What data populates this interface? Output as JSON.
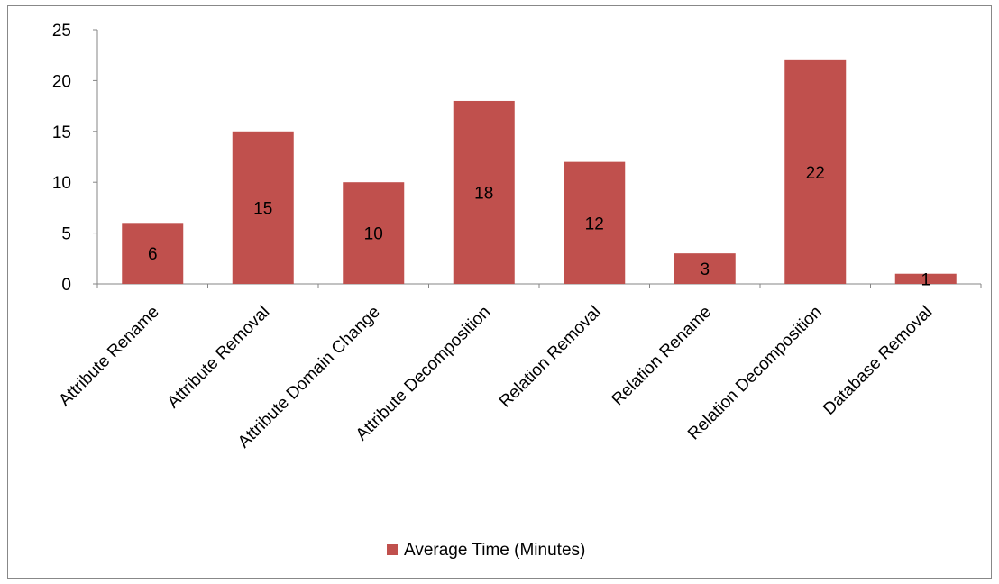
{
  "chart_data": {
    "type": "bar",
    "title": "",
    "xlabel": "",
    "ylabel": "",
    "categories": [
      "Attribute Rename",
      "Attribute Removal",
      "Attribute Domain Change",
      "Attribute Decomposition",
      "Relation Removal",
      "Relation Rename",
      "Relation Decomposition",
      "Database Removal"
    ],
    "series": [
      {
        "name": "Average Time (Minutes)",
        "values": [
          6,
          15,
          10,
          18,
          12,
          3,
          22,
          1
        ],
        "color": "#C0504D"
      }
    ],
    "ylim": [
      0,
      25
    ],
    "yticks": [
      0,
      5,
      10,
      15,
      20,
      25
    ],
    "grid": false,
    "legend_position": "bottom",
    "data_labels": [
      "6",
      "15",
      "10",
      "18",
      "12",
      "3",
      "22",
      "1"
    ]
  }
}
